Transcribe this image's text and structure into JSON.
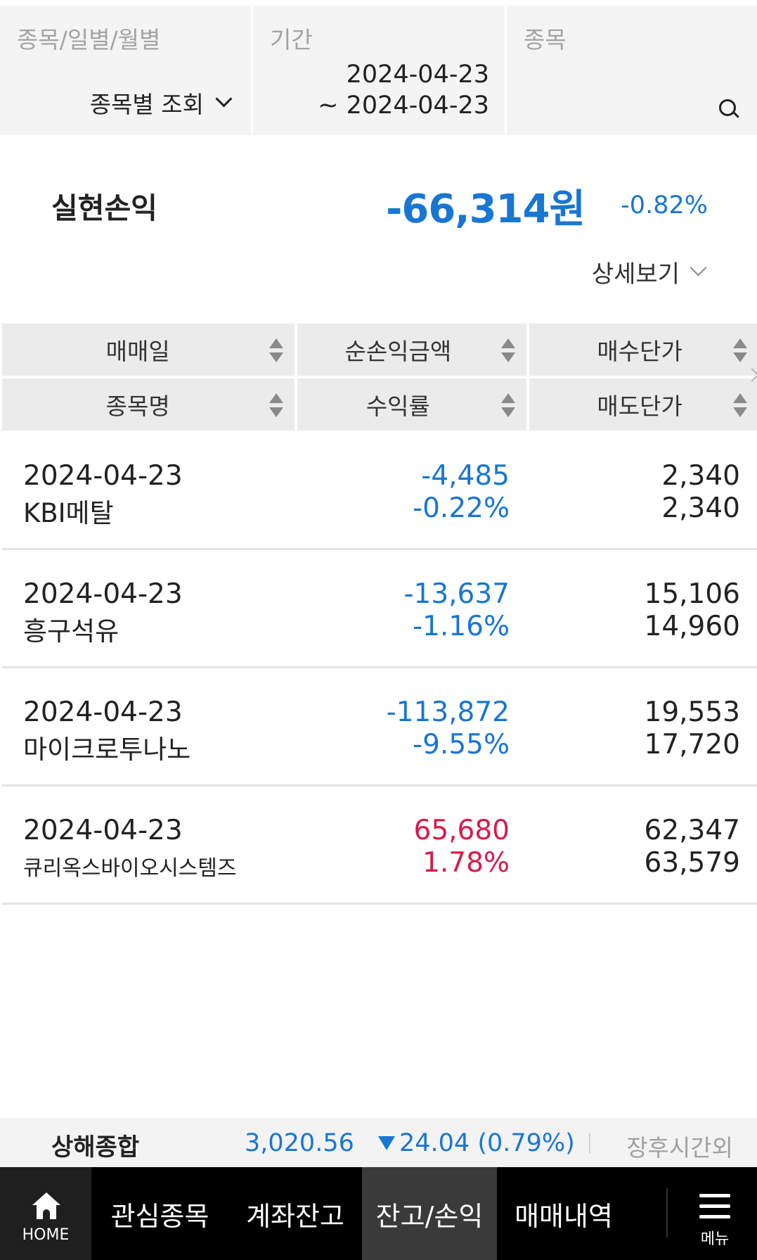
{
  "filters": {
    "type_label": "종목/일별/월별",
    "type_value": "종목별 조회",
    "period_label": "기간",
    "period_start": "2024-04-23",
    "period_end": "~ 2024-04-23",
    "stock_label": "종목"
  },
  "summary": {
    "label": "실현손익",
    "amount": "-66,314원",
    "rate": "-0.82%",
    "detail_label": "상세보기"
  },
  "table": {
    "headers_row1": [
      "매매일",
      "순손익금액",
      "매수단가"
    ],
    "headers_row2": [
      "종목명",
      "수익률",
      "매도단가"
    ],
    "rows": [
      {
        "date": "2024-04-23",
        "name": "KBI메탈",
        "profit": "-4,485",
        "rate": "-0.22%",
        "buy_price": "2,340",
        "sell_price": "2,340"
      },
      {
        "date": "2024-04-23",
        "name": "흥구석유",
        "profit": "-13,637",
        "rate": "-1.16%",
        "buy_price": "15,106",
        "sell_price": "14,960"
      },
      {
        "date": "2024-04-23",
        "name": "마이크로투나노",
        "profit": "-113,872",
        "rate": "-9.55%",
        "buy_price": "19,553",
        "sell_price": "17,720"
      },
      {
        "date": "2024-04-23",
        "name": "큐리옥스바이오시스템즈",
        "profit": "65,680",
        "rate": "1.78%",
        "buy_price": "62,347",
        "sell_price": "63,579"
      }
    ]
  },
  "ticker": {
    "name": "상해종합",
    "value": "3,020.56",
    "change": "24.04 (0.79%)",
    "status": "장후시간외"
  },
  "nav": {
    "home": "HOME",
    "tabs": [
      "관심종목",
      "계좌잔고",
      "잔고/손익",
      "매매내역"
    ],
    "menu": "메뉴"
  },
  "colors": {
    "negative": "#1976d2",
    "positive": "#d81b4a",
    "active_tab_bg": "#3a3a3a"
  }
}
